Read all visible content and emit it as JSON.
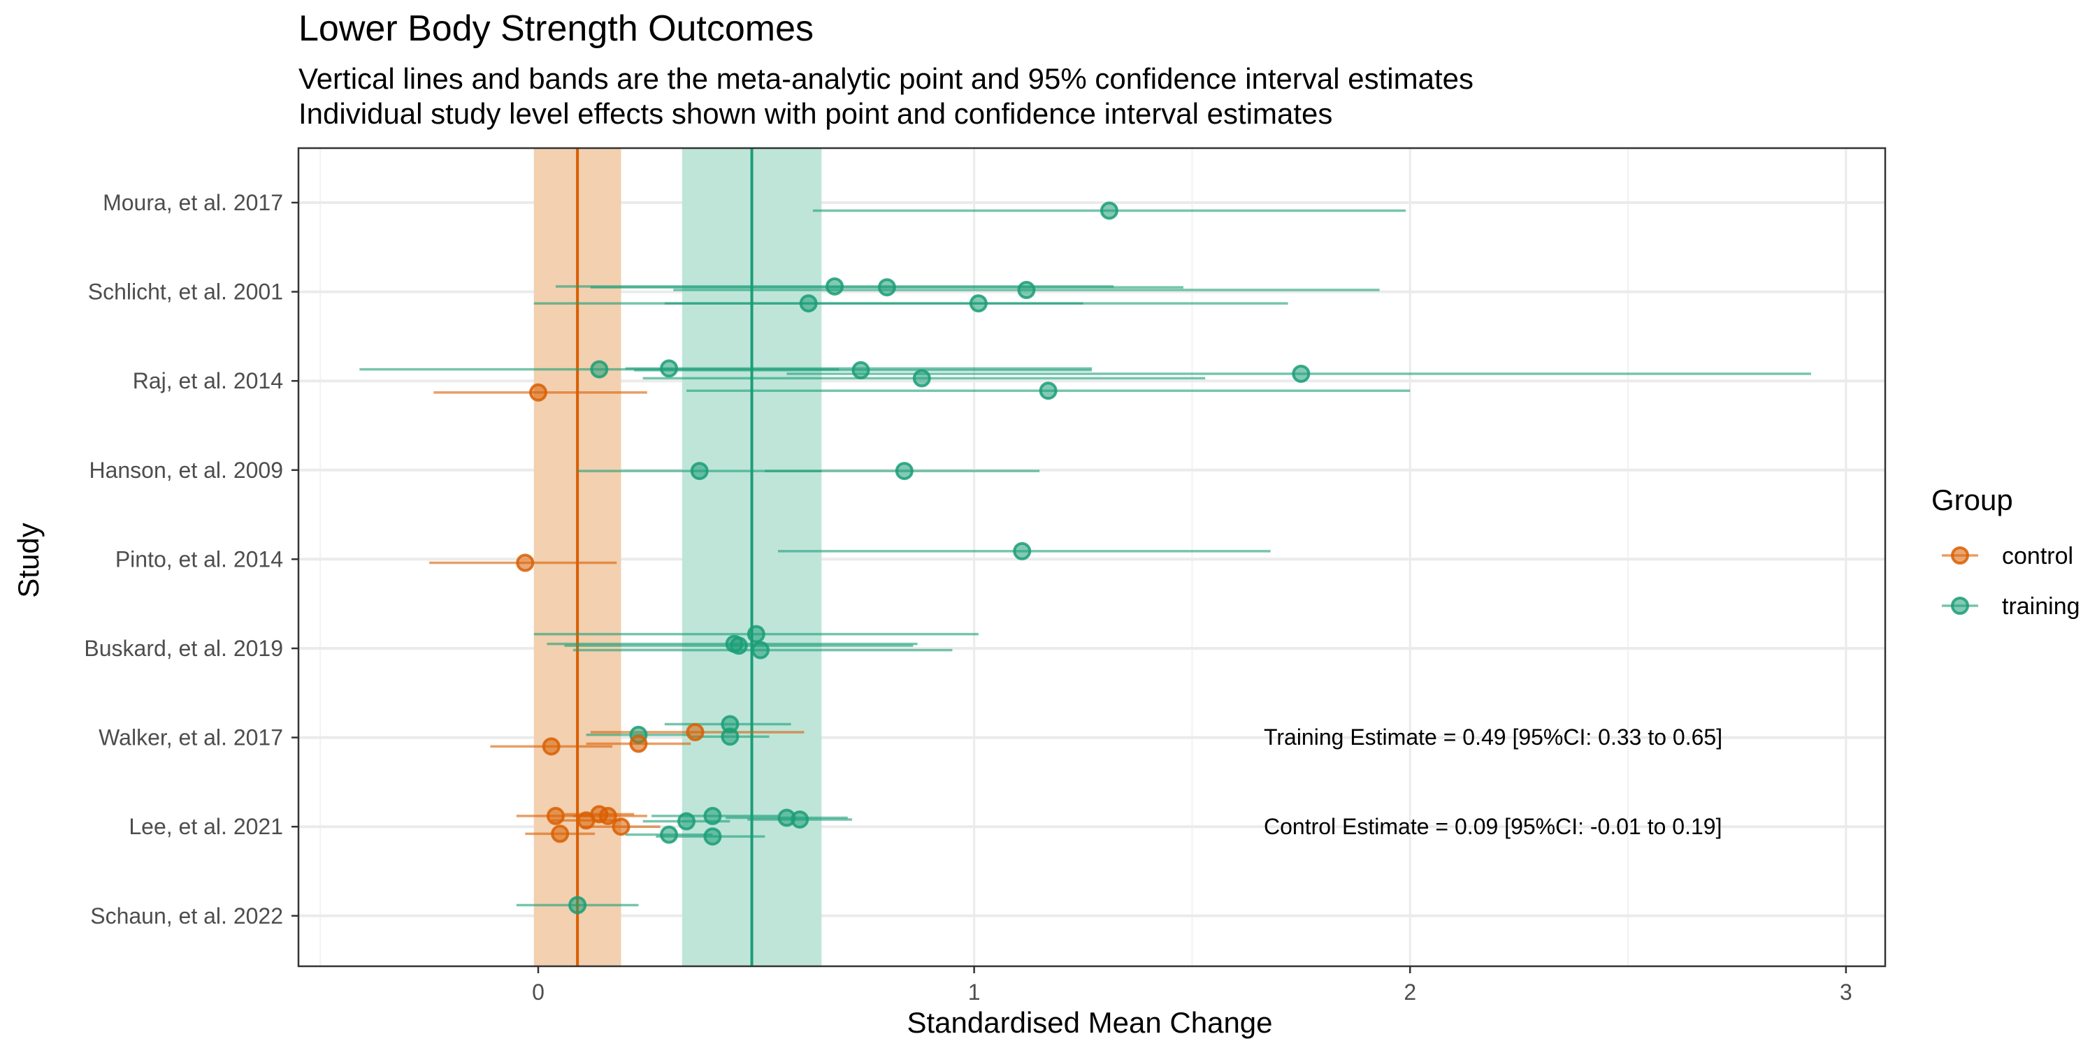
{
  "chart_data": {
    "type": "forest",
    "title": "Lower Body Strength Outcomes",
    "subtitle_lines": [
      "Vertical lines and bands are the meta-analytic point and 95% confidence interval estimates",
      "Individual study level effects shown with point and confidence interval estimates"
    ],
    "xlabel": "Standardised Mean Change",
    "ylabel": "Study",
    "xlim": [
      -0.55,
      3.09
    ],
    "x_ticks": [
      0,
      1,
      2,
      3
    ],
    "grid": true,
    "legend": {
      "title": "Group",
      "placement": "right",
      "entries": [
        {
          "name": "control",
          "color": "#D95F02"
        },
        {
          "name": "training",
          "color": "#1B9E77"
        }
      ]
    },
    "studies": [
      "Moura, et al. 2017",
      "Schlicht, et al. 2001",
      "Raj, et al. 2014",
      "Hanson, et al. 2009",
      "Pinto, et al. 2014",
      "Buskard, et al. 2019",
      "Walker, et al. 2017",
      "Lee, et al. 2021",
      "Schaun, et al. 2022"
    ],
    "pooled": [
      {
        "group": "control",
        "estimate": 0.09,
        "lower": -0.01,
        "upper": 0.19
      },
      {
        "group": "training",
        "estimate": 0.49,
        "lower": 0.33,
        "upper": 0.65
      }
    ],
    "annotations": [
      "Training Estimate = 0.49 [95%CI: 0.33 to 0.65]",
      "Control Estimate = 0.09 [95%CI: -0.01 to 0.19]"
    ],
    "effects": [
      {
        "study": "Moura, et al. 2017",
        "group": "training",
        "estimate": 1.31,
        "lower": 0.63,
        "upper": 1.99,
        "offset": -0.09
      },
      {
        "study": "Schlicht, et al. 2001",
        "group": "training",
        "estimate": 0.68,
        "lower": 0.04,
        "upper": 1.32,
        "offset": 0.06
      },
      {
        "study": "Schlicht, et al. 2001",
        "group": "training",
        "estimate": 0.8,
        "lower": 0.12,
        "upper": 1.48,
        "offset": 0.05
      },
      {
        "study": "Schlicht, et al. 2001",
        "group": "training",
        "estimate": 1.12,
        "lower": 0.31,
        "upper": 1.93,
        "offset": 0.02
      },
      {
        "study": "Schlicht, et al. 2001",
        "group": "training",
        "estimate": 0.62,
        "lower": -0.01,
        "upper": 1.25,
        "offset": -0.13
      },
      {
        "study": "Schlicht, et al. 2001",
        "group": "training",
        "estimate": 1.01,
        "lower": 0.29,
        "upper": 1.72,
        "offset": -0.13
      },
      {
        "study": "Raj, et al. 2014",
        "group": "training",
        "estimate": 0.14,
        "lower": -0.41,
        "upper": 0.69,
        "offset": 0.13
      },
      {
        "study": "Raj, et al. 2014",
        "group": "training",
        "estimate": 0.3,
        "lower": 0.2,
        "upper": 1.27,
        "offset": 0.14
      },
      {
        "study": "Raj, et al. 2014",
        "group": "training",
        "estimate": 0.74,
        "lower": 0.22,
        "upper": 1.27,
        "offset": 0.12
      },
      {
        "study": "Raj, et al. 2014",
        "group": "training",
        "estimate": 1.75,
        "lower": 0.57,
        "upper": 2.92,
        "offset": 0.08
      },
      {
        "study": "Raj, et al. 2014",
        "group": "training",
        "estimate": 0.88,
        "lower": 0.24,
        "upper": 1.53,
        "offset": 0.03
      },
      {
        "study": "Raj, et al. 2014",
        "group": "training",
        "estimate": 1.17,
        "lower": 0.34,
        "upper": 2.0,
        "offset": -0.11
      },
      {
        "study": "Raj, et al. 2014",
        "group": "control",
        "estimate": 0.0,
        "lower": -0.24,
        "upper": 0.25,
        "offset": -0.13
      },
      {
        "study": "Hanson, et al. 2009",
        "group": "training",
        "estimate": 0.37,
        "lower": 0.09,
        "upper": 0.65,
        "offset": -0.01
      },
      {
        "study": "Hanson, et al. 2009",
        "group": "training",
        "estimate": 0.84,
        "lower": 0.52,
        "upper": 1.15,
        "offset": -0.01
      },
      {
        "study": "Pinto, et al. 2014",
        "group": "training",
        "estimate": 1.11,
        "lower": 0.55,
        "upper": 1.68,
        "offset": 0.09
      },
      {
        "study": "Pinto, et al. 2014",
        "group": "control",
        "estimate": -0.03,
        "lower": -0.25,
        "upper": 0.18,
        "offset": -0.04
      },
      {
        "study": "Buskard, et al. 2019",
        "group": "training",
        "estimate": 0.5,
        "lower": -0.01,
        "upper": 1.01,
        "offset": 0.16
      },
      {
        "study": "Buskard, et al. 2019",
        "group": "training",
        "estimate": 0.45,
        "lower": 0.02,
        "upper": 0.87,
        "offset": 0.05
      },
      {
        "study": "Buskard, et al. 2019",
        "group": "training",
        "estimate": 0.46,
        "lower": 0.06,
        "upper": 0.86,
        "offset": 0.03
      },
      {
        "study": "Buskard, et al. 2019",
        "group": "training",
        "estimate": 0.51,
        "lower": 0.08,
        "upper": 0.95,
        "offset": -0.02
      },
      {
        "study": "Walker, et al. 2017",
        "group": "training",
        "estimate": 0.44,
        "lower": 0.29,
        "upper": 0.58,
        "offset": 0.15
      },
      {
        "study": "Walker, et al. 2017",
        "group": "control",
        "estimate": 0.36,
        "lower": 0.12,
        "upper": 0.61,
        "offset": 0.06
      },
      {
        "study": "Walker, et al. 2017",
        "group": "training",
        "estimate": 0.23,
        "lower": 0.11,
        "upper": 0.35,
        "offset": 0.03
      },
      {
        "study": "Walker, et al. 2017",
        "group": "training",
        "estimate": 0.44,
        "lower": 0.35,
        "upper": 0.53,
        "offset": 0.01
      },
      {
        "study": "Walker, et al. 2017",
        "group": "control",
        "estimate": 0.23,
        "lower": 0.11,
        "upper": 0.35,
        "offset": -0.07
      },
      {
        "study": "Walker, et al. 2017",
        "group": "control",
        "estimate": 0.03,
        "lower": -0.11,
        "upper": 0.17,
        "offset": -0.1
      },
      {
        "study": "Lee, et al. 2021",
        "group": "control",
        "estimate": 0.04,
        "lower": -0.05,
        "upper": 0.12,
        "offset": 0.12
      },
      {
        "study": "Lee, et al. 2021",
        "group": "control",
        "estimate": 0.14,
        "lower": 0.06,
        "upper": 0.22,
        "offset": 0.14
      },
      {
        "study": "Lee, et al. 2021",
        "group": "control",
        "estimate": 0.16,
        "lower": 0.08,
        "upper": 0.25,
        "offset": 0.12
      },
      {
        "study": "Lee, et al. 2021",
        "group": "control",
        "estimate": 0.11,
        "lower": 0.03,
        "upper": 0.19,
        "offset": 0.07
      },
      {
        "study": "Lee, et al. 2021",
        "group": "control",
        "estimate": 0.19,
        "lower": 0.1,
        "upper": 0.28,
        "offset": 0.0
      },
      {
        "study": "Lee, et al. 2021",
        "group": "control",
        "estimate": 0.05,
        "lower": -0.03,
        "upper": 0.13,
        "offset": -0.08
      },
      {
        "study": "Lee, et al. 2021",
        "group": "training",
        "estimate": 0.4,
        "lower": 0.26,
        "upper": 0.55,
        "offset": 0.12
      },
      {
        "study": "Lee, et al. 2021",
        "group": "training",
        "estimate": 0.57,
        "lower": 0.43,
        "upper": 0.71,
        "offset": 0.1
      },
      {
        "study": "Lee, et al. 2021",
        "group": "training",
        "estimate": 0.6,
        "lower": 0.48,
        "upper": 0.72,
        "offset": 0.08
      },
      {
        "study": "Lee, et al. 2021",
        "group": "training",
        "estimate": 0.34,
        "lower": 0.24,
        "upper": 0.44,
        "offset": 0.06
      },
      {
        "study": "Lee, et al. 2021",
        "group": "training",
        "estimate": 0.3,
        "lower": 0.2,
        "upper": 0.4,
        "offset": -0.09
      },
      {
        "study": "Lee, et al. 2021",
        "group": "training",
        "estimate": 0.4,
        "lower": 0.27,
        "upper": 0.52,
        "offset": -0.11
      },
      {
        "study": "Schaun, et al. 2022",
        "group": "training",
        "estimate": 0.09,
        "lower": -0.05,
        "upper": 0.23,
        "offset": 0.12
      }
    ]
  }
}
